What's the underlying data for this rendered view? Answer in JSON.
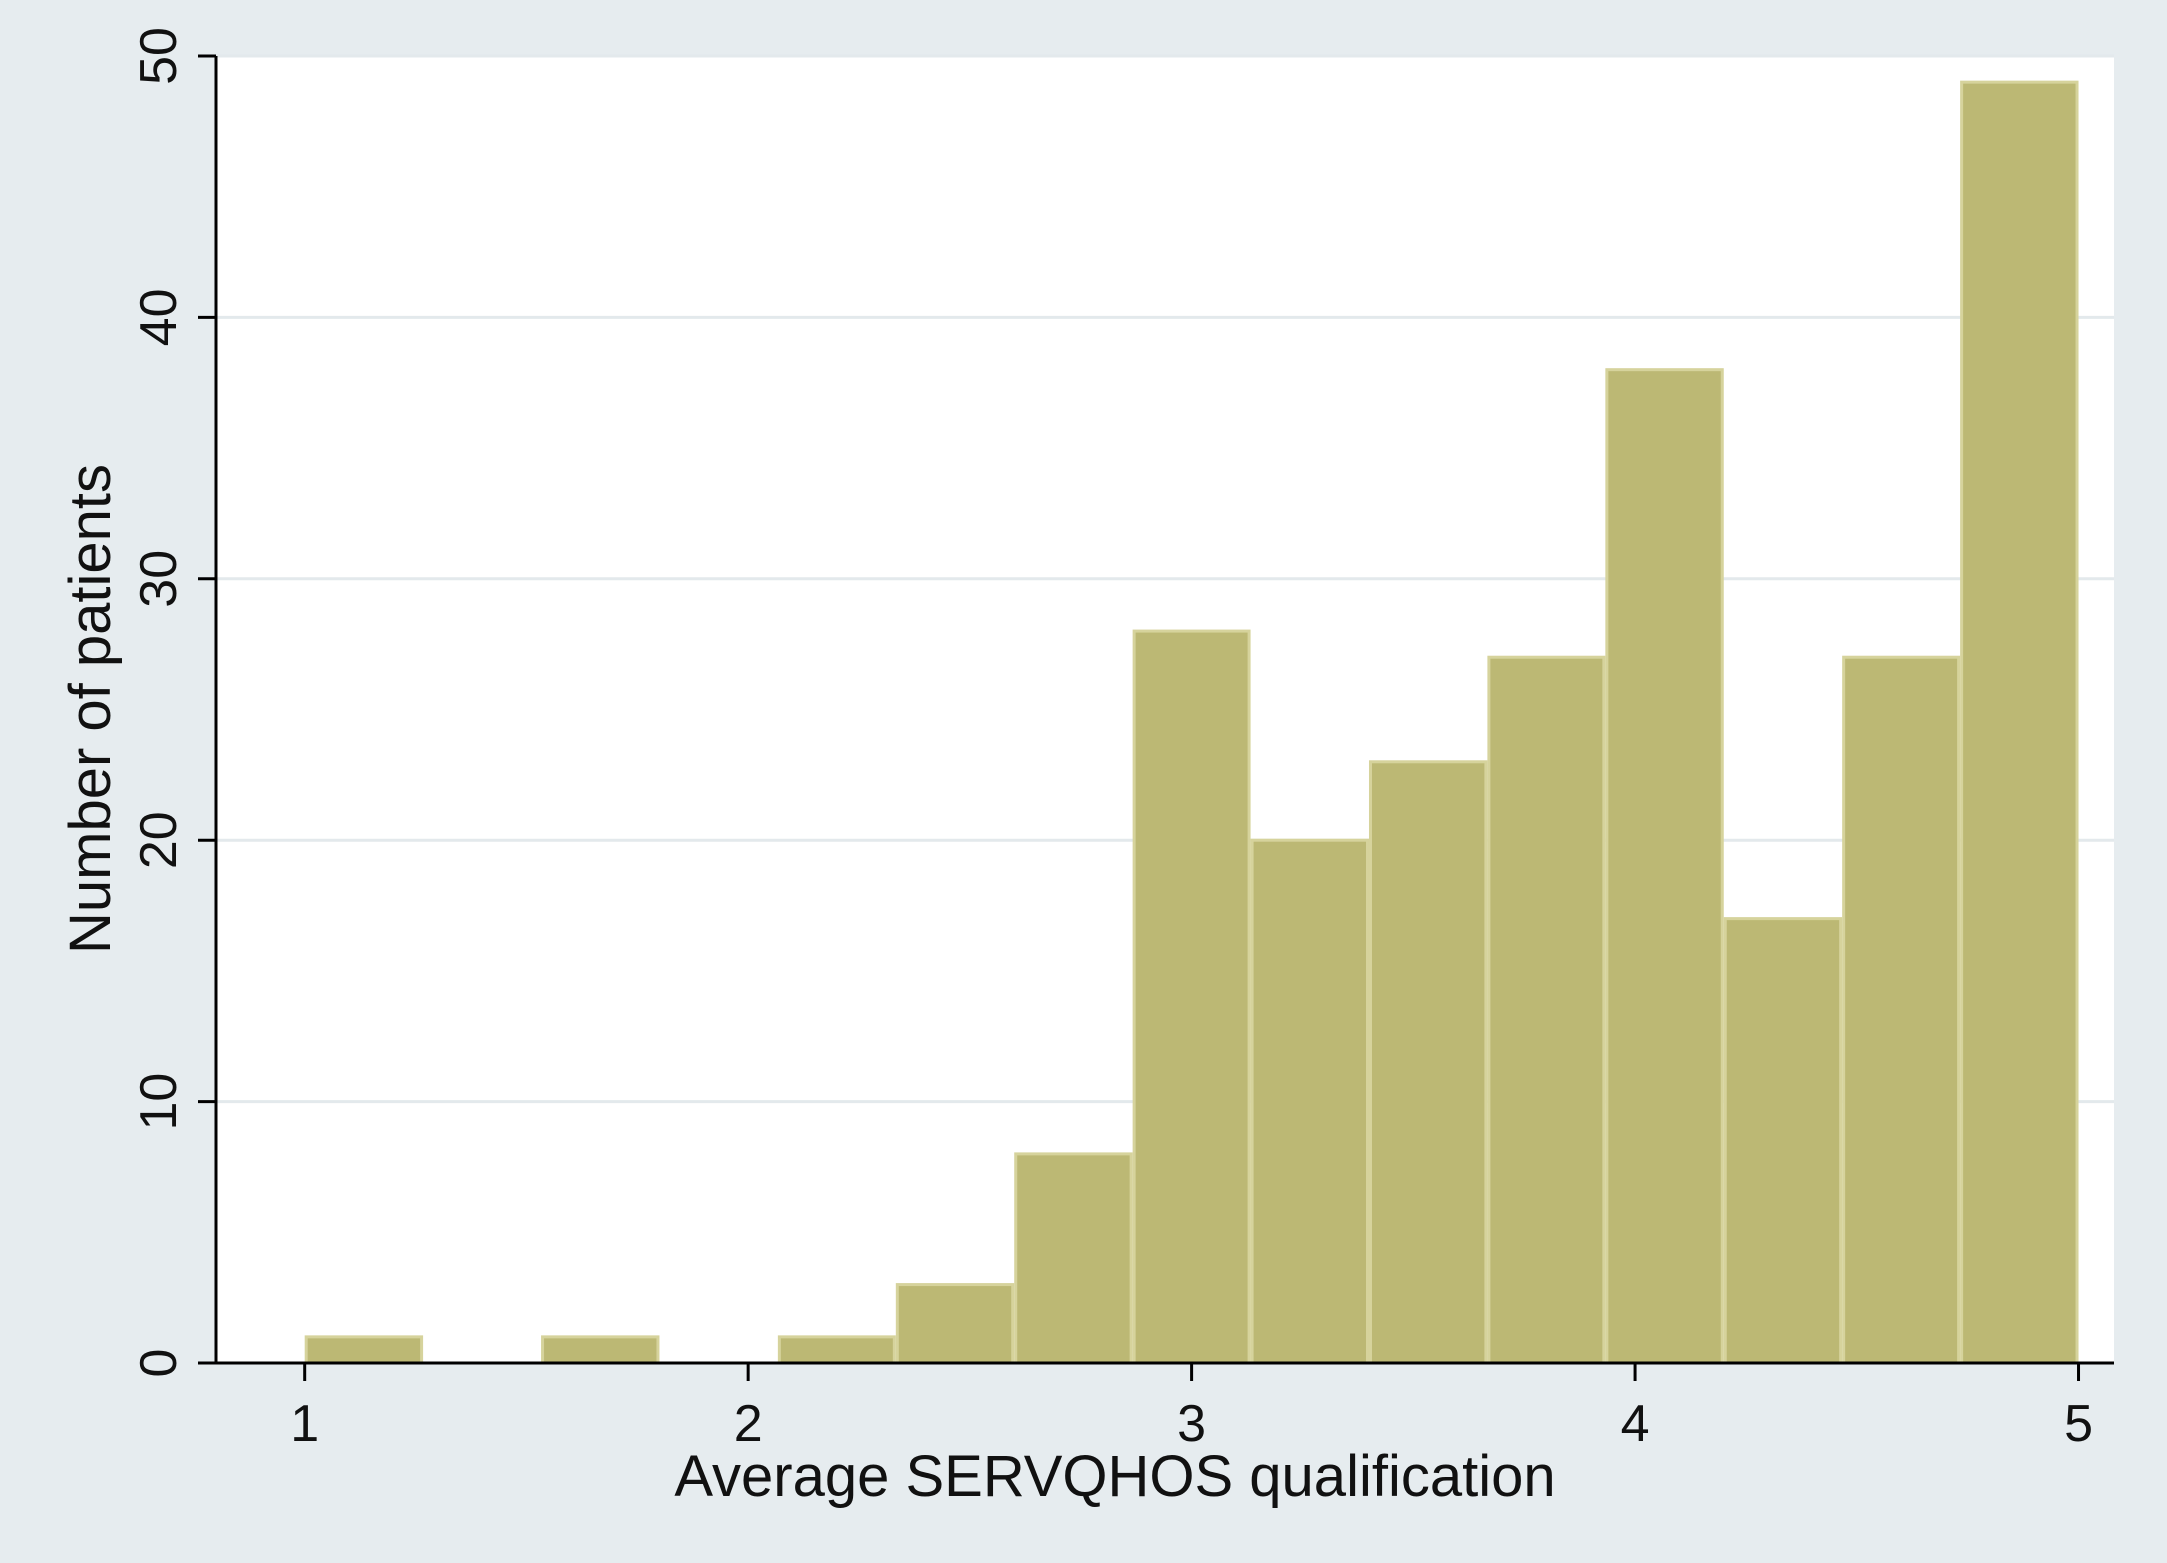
{
  "chart_data": {
    "type": "bar",
    "title": "",
    "xlabel": "Average SERVQHOS qualification",
    "ylabel": "Number of patients",
    "xlim": [
      0.8,
      5.08
    ],
    "ylim": [
      0,
      50
    ],
    "xticks": [
      1,
      2,
      3,
      4,
      5
    ],
    "yticks": [
      0,
      10,
      20,
      30,
      40,
      50
    ],
    "grid": true,
    "bins": [
      {
        "x0": 1.0,
        "x1": 1.267,
        "value": 1
      },
      {
        "x0": 1.267,
        "x1": 1.533,
        "value": 0
      },
      {
        "x0": 1.533,
        "x1": 1.8,
        "value": 1
      },
      {
        "x0": 1.8,
        "x1": 2.067,
        "value": 0
      },
      {
        "x0": 2.067,
        "x1": 2.333,
        "value": 1
      },
      {
        "x0": 2.333,
        "x1": 2.6,
        "value": 3
      },
      {
        "x0": 2.6,
        "x1": 2.867,
        "value": 8
      },
      {
        "x0": 2.867,
        "x1": 3.133,
        "value": 28
      },
      {
        "x0": 3.133,
        "x1": 3.4,
        "value": 20
      },
      {
        "x0": 3.4,
        "x1": 3.667,
        "value": 23
      },
      {
        "x0": 3.667,
        "x1": 3.933,
        "value": 27
      },
      {
        "x0": 3.933,
        "x1": 4.2,
        "value": 38
      },
      {
        "x0": 4.2,
        "x1": 4.467,
        "value": 17
      },
      {
        "x0": 4.467,
        "x1": 4.733,
        "value": 27
      },
      {
        "x0": 4.733,
        "x1": 5.0,
        "value": 49
      }
    ],
    "colors": {
      "bar_fill": "#bcb874",
      "bar_edge": "#d6d39c",
      "outer_background": "#e6ecef",
      "plot_background": "#ffffff",
      "gridline": "#e3e9ec",
      "axis": "#000000"
    }
  }
}
